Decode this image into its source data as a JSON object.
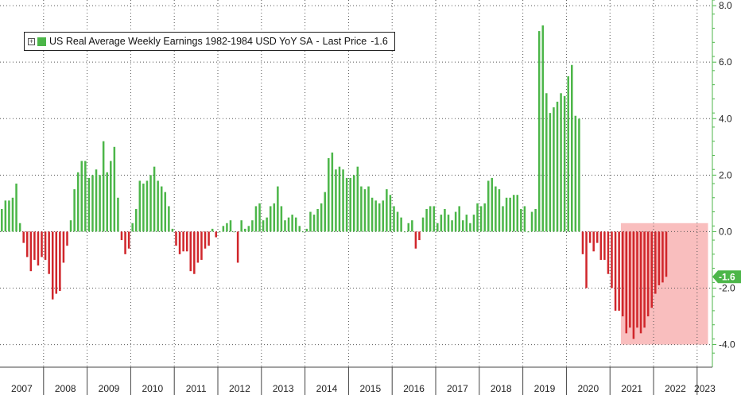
{
  "colors": {
    "positive": "#4cb649",
    "negative": "#d0262b",
    "shade": "#f8b3b3",
    "axis": "#4cb649"
  },
  "legend": {
    "series_name": "US Real Average Weekly Earnings 1982-1984 USD YoY SA",
    "last_price_label": "Last Price",
    "last_price_value": "-1.6"
  },
  "chart_data": {
    "type": "bar",
    "title": "",
    "xlabel": "",
    "ylabel": "",
    "ylim": [
      -4.8,
      8.2
    ],
    "yticks": [
      "8.0",
      "6.0",
      "4.0",
      "2.0",
      "0.0",
      "-2.0",
      "-4.0"
    ],
    "ytick_values": [
      8,
      6,
      4,
      2,
      0,
      -2,
      -4
    ],
    "years": [
      "2007",
      "2008",
      "2009",
      "2010",
      "2011",
      "2012",
      "2013",
      "2014",
      "2015",
      "2016",
      "2017",
      "2018",
      "2019",
      "2020",
      "2021",
      "2022",
      "2023"
    ],
    "x_start": "2007-01",
    "last_value_tag": "-1.6",
    "last_value": -1.6,
    "highlight_range": {
      "from": "2021-04",
      "to": "2023-03",
      "ymin": -4.0,
      "ymax": 0.3
    },
    "series": [
      {
        "name": "US Real Average Weekly Earnings 1982-1984 USD YoY SA",
        "values": [
          0.8,
          1.1,
          1.1,
          1.2,
          1.7,
          0.3,
          -0.4,
          -0.9,
          -1.4,
          -1.0,
          -1.2,
          -0.9,
          -1.0,
          -1.5,
          -2.4,
          -2.2,
          -2.1,
          -1.1,
          -0.5,
          0.4,
          1.5,
          2.1,
          2.5,
          2.5,
          1.9,
          2.0,
          2.2,
          2.0,
          3.2,
          2.1,
          2.5,
          3.0,
          1.2,
          -0.3,
          -0.8,
          -0.6,
          0.3,
          0.8,
          1.8,
          1.7,
          1.8,
          2.0,
          2.3,
          1.8,
          1.6,
          1.4,
          0.9,
          0.1,
          -0.5,
          -0.8,
          -0.7,
          -0.7,
          -1.4,
          -1.5,
          -1.1,
          -1.0,
          -0.6,
          -0.5,
          0.1,
          -0.2,
          0.0,
          0.2,
          0.3,
          0.4,
          0.0,
          -1.1,
          0.4,
          0.1,
          0.2,
          0.4,
          0.9,
          1.0,
          0.4,
          0.5,
          0.9,
          1.0,
          1.6,
          0.9,
          0.4,
          0.5,
          0.6,
          0.5,
          0.2,
          0.0,
          0.1,
          0.7,
          0.6,
          0.8,
          1.0,
          1.4,
          2.6,
          2.8,
          2.2,
          2.3,
          2.2,
          1.9,
          1.9,
          2.0,
          2.3,
          1.6,
          1.5,
          1.6,
          1.2,
          1.1,
          1.0,
          1.1,
          1.5,
          1.3,
          0.9,
          0.7,
          0.5,
          0.0,
          0.3,
          0.4,
          -0.6,
          -0.3,
          0.5,
          0.8,
          0.9,
          0.9,
          0.3,
          0.6,
          0.8,
          0.6,
          0.4,
          0.7,
          0.9,
          0.4,
          0.6,
          0.3,
          0.6,
          1.0,
          0.9,
          1.0,
          1.8,
          1.9,
          1.6,
          1.5,
          0.9,
          1.2,
          1.2,
          1.3,
          1.3,
          0.8,
          0.9,
          0.0,
          0.7,
          0.8,
          7.1,
          7.3,
          4.9,
          4.2,
          4.4,
          4.6,
          4.9,
          4.8,
          5.5,
          5.9,
          4.1,
          4.0,
          -0.8,
          -2.0,
          -0.4,
          -0.7,
          -0.4,
          -1.0,
          -1.0,
          -1.5,
          -2.0,
          -2.8,
          -2.8,
          -3.0,
          -3.6,
          -3.4,
          -3.8,
          -3.4,
          -3.6,
          -3.4,
          -3.0,
          -2.7,
          -2.2,
          -1.9,
          -1.8,
          -1.6
        ]
      }
    ]
  }
}
